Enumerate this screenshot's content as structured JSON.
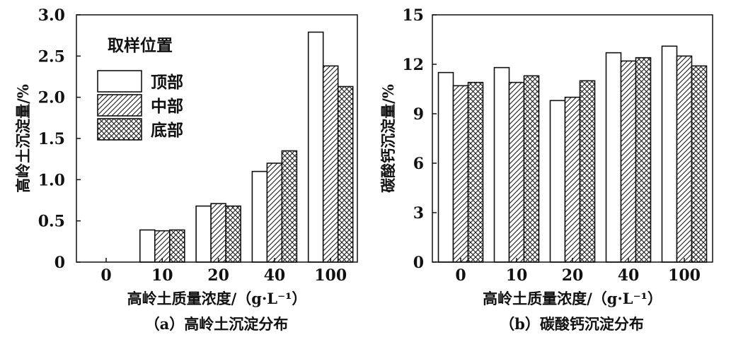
{
  "chart_data": [
    {
      "type": "bar",
      "caption": "（a）高岭土沉淀分布",
      "xlabel": "高岭土质量浓度/（g·L⁻¹）",
      "ylabel": "高岭土沉淀量/%",
      "categories": [
        "0",
        "10",
        "20",
        "40",
        "100"
      ],
      "ylim": [
        0,
        3.0
      ],
      "yticks": [
        "0",
        "0.5",
        "1.0",
        "1.5",
        "2.0",
        "2.5",
        "3.0"
      ],
      "legend": {
        "title": "取样位置",
        "position": "top-left"
      },
      "series": [
        {
          "name": "顶部",
          "pattern": "blank",
          "values": [
            0,
            0.39,
            0.68,
            1.1,
            2.79
          ]
        },
        {
          "name": "中部",
          "pattern": "diagonal",
          "values": [
            0,
            0.38,
            0.71,
            1.2,
            2.38
          ]
        },
        {
          "name": "底部",
          "pattern": "crosshatch",
          "values": [
            0,
            0.39,
            0.68,
            1.35,
            2.13
          ]
        }
      ]
    },
    {
      "type": "bar",
      "caption": "（b）碳酸钙沉淀分布",
      "xlabel": "高岭土质量浓度/（g·L⁻¹）",
      "ylabel": "碳酸钙沉淀量/%",
      "categories": [
        "0",
        "10",
        "20",
        "40",
        "100"
      ],
      "ylim": [
        0,
        15
      ],
      "yticks": [
        "0",
        "3",
        "6",
        "9",
        "12",
        "15"
      ],
      "series": [
        {
          "name": "顶部",
          "pattern": "blank",
          "values": [
            11.5,
            11.8,
            9.8,
            12.7,
            13.1
          ]
        },
        {
          "name": "中部",
          "pattern": "diagonal",
          "values": [
            10.7,
            10.9,
            10.0,
            12.2,
            12.5
          ]
        },
        {
          "name": "底部",
          "pattern": "crosshatch",
          "values": [
            10.9,
            11.3,
            11.0,
            12.4,
            11.9
          ]
        }
      ]
    }
  ]
}
